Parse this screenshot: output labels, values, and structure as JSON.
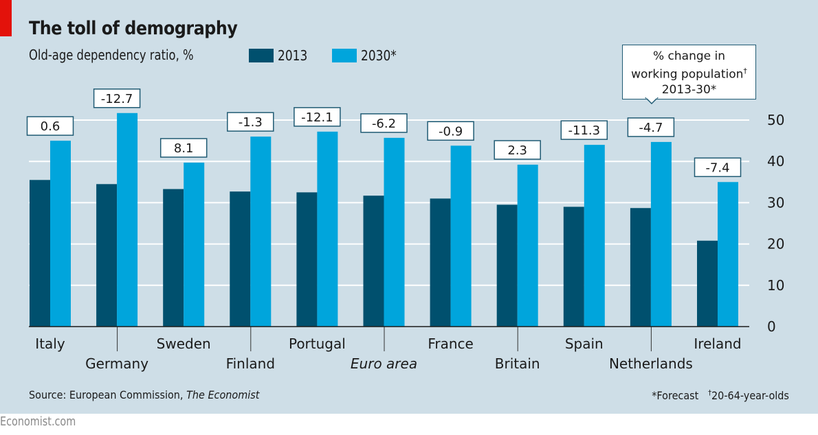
{
  "header": {
    "title": "The toll of demography",
    "subtitle": "Old-age dependency ratio, %"
  },
  "legend": [
    {
      "label": "2013",
      "color": "#00506e"
    },
    {
      "label": "2030*",
      "color": "#00a5dc"
    }
  ],
  "callout": {
    "line1": "% change in",
    "line2": "working population",
    "line2_mark": "†",
    "line3": "2013-30*"
  },
  "footer": {
    "source_prefix": "Source: European Commission, ",
    "source_italic": "The Economist",
    "note_forecast": "*Forecast",
    "note_dagger_mark": "†",
    "note_dagger": "20-64-year-olds",
    "brand": "Economist.com"
  },
  "chart_data": {
    "type": "bar",
    "title": "The toll of demography",
    "subtitle": "Old-age dependency ratio, %",
    "xlabel": "",
    "ylabel": "Old-age dependency ratio, %",
    "ylim": [
      0,
      50
    ],
    "yticks": [
      0,
      10,
      20,
      30,
      40,
      50
    ],
    "y_axis_side": "right",
    "grid": true,
    "legend_position": "top",
    "categories": [
      "Italy",
      "Germany",
      "Sweden",
      "Finland",
      "Portugal",
      "Euro area",
      "France",
      "Britain",
      "Spain",
      "Netherlands",
      "Ireland"
    ],
    "italic_categories": [
      "Euro area"
    ],
    "series": [
      {
        "name": "2013",
        "color": "#00506e",
        "values": [
          35.5,
          34.5,
          33.3,
          32.7,
          32.5,
          31.7,
          31.0,
          29.5,
          29.0,
          28.7,
          20.8
        ]
      },
      {
        "name": "2030*",
        "color": "#00a5dc",
        "values": [
          45.0,
          51.7,
          39.7,
          46.0,
          47.2,
          45.7,
          43.8,
          39.2,
          44.0,
          44.7,
          35.0
        ]
      }
    ],
    "annotations": {
      "title": "% change in working population† 2013-30*",
      "values": [
        "0.6",
        "-12.7",
        "8.1",
        "-1.3",
        "-12.1",
        "-6.2",
        "-0.9",
        "2.3",
        "-11.3",
        "-4.7",
        "-7.4"
      ]
    }
  }
}
